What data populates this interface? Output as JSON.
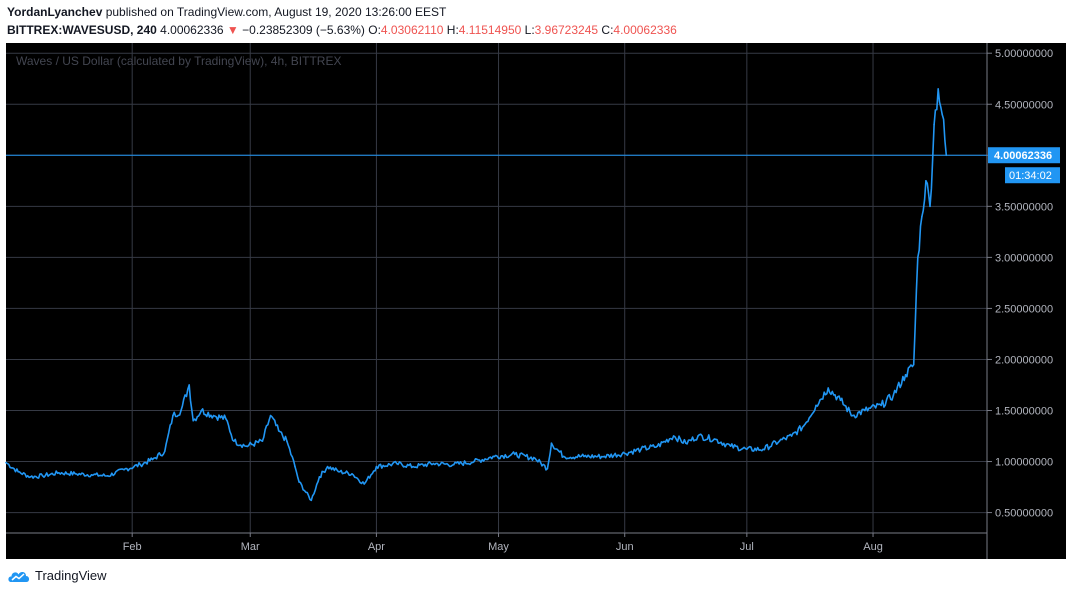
{
  "header": {
    "author": "YordanLyanchev",
    "published_text": " published on TradingView.com, August 19, 2020 13:26:00 EEST",
    "symbol": "BITTREX:WAVESUSD, 240",
    "last": "4.00062336",
    "down_arrow": "▼",
    "change": "−0.23852309 (−5.63%)",
    "o_label": "O:",
    "o_value": "4.03062110",
    "h_label": "H:",
    "h_value": "4.11514950",
    "l_label": "L:",
    "l_value": "3.96723245",
    "c_label": "C:",
    "c_value": "4.00062336"
  },
  "footer": {
    "brand": "TradingView",
    "logo_icon": "tradingview-cloud-icon"
  },
  "colors": {
    "background": "#000000",
    "grid": "#363a45",
    "series": "#2196f3",
    "price_label_bg": "#2196f3",
    "negative": "#ef5350"
  },
  "chart_data": {
    "type": "line",
    "title": "Waves / US Dollar (calculated by TradingView), 4h, BITTREX",
    "xlabel": "",
    "ylabel": "",
    "ylim": [
      0.3,
      5.1
    ],
    "y_ticks": [
      0.5,
      1.0,
      1.5,
      2.0,
      2.5,
      3.0,
      3.5,
      4.0,
      4.5,
      5.0
    ],
    "y_tick_labels": [
      "0.50000000",
      "1.00000000",
      "1.50000000",
      "2.00000000",
      "2.50000000",
      "3.00000000",
      "3.50000000",
      "4.00000000",
      "4.50000000",
      "5.00000000"
    ],
    "x_range": [
      "2020-01-01",
      "2020-08-29"
    ],
    "x_ticks": [
      {
        "date": "2020-02-01",
        "label": "Feb"
      },
      {
        "date": "2020-03-01",
        "label": "Mar"
      },
      {
        "date": "2020-04-01",
        "label": "Apr"
      },
      {
        "date": "2020-05-01",
        "label": "May"
      },
      {
        "date": "2020-06-01",
        "label": "Jun"
      },
      {
        "date": "2020-07-01",
        "label": "Jul"
      },
      {
        "date": "2020-08-01",
        "label": "Aug"
      }
    ],
    "grid": true,
    "last_price": 4.00062336,
    "last_price_label": "4.00062336",
    "countdown_label": "01:34:02",
    "series": [
      {
        "values": [
          {
            "x": "2020-01-01",
            "y": 0.99
          },
          {
            "x": "2020-01-04",
            "y": 0.9
          },
          {
            "x": "2020-01-07",
            "y": 0.85
          },
          {
            "x": "2020-01-10",
            "y": 0.86
          },
          {
            "x": "2020-01-14",
            "y": 0.89
          },
          {
            "x": "2020-01-18",
            "y": 0.88
          },
          {
            "x": "2020-01-22",
            "y": 0.87
          },
          {
            "x": "2020-01-26",
            "y": 0.86
          },
          {
            "x": "2020-01-30",
            "y": 0.92
          },
          {
            "x": "2020-02-03",
            "y": 0.97
          },
          {
            "x": "2020-02-06",
            "y": 1.02
          },
          {
            "x": "2020-02-09",
            "y": 1.1
          },
          {
            "x": "2020-02-11",
            "y": 1.45
          },
          {
            "x": "2020-02-13",
            "y": 1.5
          },
          {
            "x": "2020-02-15",
            "y": 1.75
          },
          {
            "x": "2020-02-16",
            "y": 1.4
          },
          {
            "x": "2020-02-18",
            "y": 1.5
          },
          {
            "x": "2020-02-21",
            "y": 1.45
          },
          {
            "x": "2020-02-24",
            "y": 1.42
          },
          {
            "x": "2020-02-26",
            "y": 1.2
          },
          {
            "x": "2020-02-29",
            "y": 1.15
          },
          {
            "x": "2020-03-04",
            "y": 1.2
          },
          {
            "x": "2020-03-06",
            "y": 1.45
          },
          {
            "x": "2020-03-08",
            "y": 1.3
          },
          {
            "x": "2020-03-10",
            "y": 1.2
          },
          {
            "x": "2020-03-12",
            "y": 0.95
          },
          {
            "x": "2020-03-13",
            "y": 0.8
          },
          {
            "x": "2020-03-16",
            "y": 0.62
          },
          {
            "x": "2020-03-18",
            "y": 0.85
          },
          {
            "x": "2020-03-20",
            "y": 0.95
          },
          {
            "x": "2020-03-23",
            "y": 0.9
          },
          {
            "x": "2020-03-26",
            "y": 0.88
          },
          {
            "x": "2020-03-29",
            "y": 0.78
          },
          {
            "x": "2020-04-01",
            "y": 0.95
          },
          {
            "x": "2020-04-06",
            "y": 0.98
          },
          {
            "x": "2020-04-10",
            "y": 0.95
          },
          {
            "x": "2020-04-15",
            "y": 0.98
          },
          {
            "x": "2020-04-20",
            "y": 0.97
          },
          {
            "x": "2020-04-25",
            "y": 1.0
          },
          {
            "x": "2020-04-30",
            "y": 1.05
          },
          {
            "x": "2020-05-05",
            "y": 1.07
          },
          {
            "x": "2020-05-10",
            "y": 1.03
          },
          {
            "x": "2020-05-13",
            "y": 0.93
          },
          {
            "x": "2020-05-14",
            "y": 1.18
          },
          {
            "x": "2020-05-17",
            "y": 1.05
          },
          {
            "x": "2020-05-22",
            "y": 1.05
          },
          {
            "x": "2020-05-27",
            "y": 1.05
          },
          {
            "x": "2020-06-01",
            "y": 1.08
          },
          {
            "x": "2020-06-05",
            "y": 1.12
          },
          {
            "x": "2020-06-09",
            "y": 1.15
          },
          {
            "x": "2020-06-13",
            "y": 1.25
          },
          {
            "x": "2020-06-16",
            "y": 1.18
          },
          {
            "x": "2020-06-19",
            "y": 1.25
          },
          {
            "x": "2020-06-23",
            "y": 1.22
          },
          {
            "x": "2020-06-27",
            "y": 1.15
          },
          {
            "x": "2020-07-01",
            "y": 1.12
          },
          {
            "x": "2020-07-05",
            "y": 1.12
          },
          {
            "x": "2020-07-09",
            "y": 1.2
          },
          {
            "x": "2020-07-12",
            "y": 1.25
          },
          {
            "x": "2020-07-15",
            "y": 1.35
          },
          {
            "x": "2020-07-18",
            "y": 1.55
          },
          {
            "x": "2020-07-21",
            "y": 1.72
          },
          {
            "x": "2020-07-24",
            "y": 1.6
          },
          {
            "x": "2020-07-27",
            "y": 1.45
          },
          {
            "x": "2020-07-30",
            "y": 1.5
          },
          {
            "x": "2020-08-03",
            "y": 1.55
          },
          {
            "x": "2020-08-06",
            "y": 1.65
          },
          {
            "x": "2020-08-09",
            "y": 1.85
          },
          {
            "x": "2020-08-11",
            "y": 1.95
          },
          {
            "x": "2020-08-12",
            "y": 3.0
          },
          {
            "x": "2020-08-13",
            "y": 3.4
          },
          {
            "x": "2020-08-14",
            "y": 3.75
          },
          {
            "x": "2020-08-15",
            "y": 3.5
          },
          {
            "x": "2020-08-16",
            "y": 4.3
          },
          {
            "x": "2020-08-17",
            "y": 4.65
          },
          {
            "x": "2020-08-18",
            "y": 4.4
          },
          {
            "x": "2020-08-19",
            "y": 4.0
          }
        ]
      }
    ]
  }
}
